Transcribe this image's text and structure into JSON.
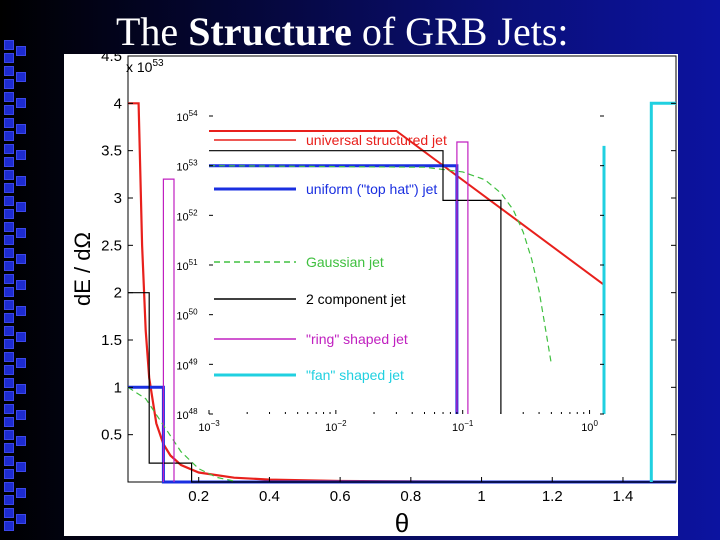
{
  "slide": {
    "title_part1": "The ",
    "title_bold": "Structure",
    "title_part2": " of GRB Jets:"
  },
  "chart_data": [
    {
      "type": "line",
      "xlabel": "θ",
      "ylabel": "dE / dΩ",
      "y_multiplier": "x 10",
      "y_multiplier_exp": "53",
      "xlim": [
        0,
        1.55
      ],
      "ylim": [
        0,
        4.5
      ],
      "x_ticks": [
        "0.2",
        "0.4",
        "0.6",
        "0.8",
        "1",
        "1.2",
        "1.4"
      ],
      "x_tick_values": [
        0.2,
        0.4,
        0.6,
        0.8,
        1,
        1.2,
        1.4
      ],
      "y_ticks": [
        "0.5",
        "1",
        "1.5",
        "2",
        "2.5",
        "3",
        "3.5",
        "4",
        "4.5"
      ],
      "y_tick_values": [
        0.5,
        1,
        1.5,
        2,
        2.5,
        3,
        3.5,
        4,
        4.5
      ],
      "series": [
        {
          "name": "universal structured jet",
          "color": "#e8201c",
          "style": "solid",
          "x": [
            0,
            0.03,
            0.04,
            0.05,
            0.06,
            0.08,
            0.1,
            0.12,
            0.15,
            0.2,
            0.3,
            0.4,
            0.6,
            0.8,
            1.0,
            1.2,
            1.4,
            1.55
          ],
          "y": [
            4,
            4,
            2.5,
            1.6,
            1.1,
            0.62,
            0.4,
            0.28,
            0.18,
            0.1,
            0.045,
            0.025,
            0.011,
            0.006,
            0.004,
            0.003,
            0.002,
            0.002
          ]
        },
        {
          "name": "uniform (\"top hat\") jet",
          "color": "#1a2fe0",
          "style": "solid",
          "x": [
            0,
            0.1,
            0.1,
            1.55
          ],
          "y": [
            1,
            1,
            0,
            0
          ]
        },
        {
          "name": "Gaussian jet",
          "color": "#40c040",
          "style": "dashed",
          "x": [
            0,
            0.05,
            0.1,
            0.15,
            0.2,
            0.25,
            0.3
          ],
          "y": [
            1,
            0.88,
            0.6,
            0.32,
            0.14,
            0.05,
            0.01
          ]
        },
        {
          "name": "2 component jet",
          "color": "#000000",
          "style": "solid",
          "x": [
            0,
            0.06,
            0.06,
            0.18,
            0.18,
            1.55
          ],
          "y": [
            2,
            2,
            0.2,
            0.2,
            0,
            0
          ]
        },
        {
          "name": "\"ring\" shaped jet",
          "color": "#c020c0",
          "style": "solid",
          "x": [
            0.1,
            0.1,
            0.13,
            0.13
          ],
          "y": [
            0,
            3.2,
            3.2,
            0
          ]
        },
        {
          "name": "\"fan\" shaped jet",
          "color": "#20d0e0",
          "style": "solid",
          "x": [
            1.48,
            1.48,
            1.55
          ],
          "y": [
            0,
            4,
            4
          ]
        }
      ]
    },
    {
      "type": "line",
      "scale": "log-log",
      "xlim": [
        0.001,
        1.3
      ],
      "ylim": [
        1e+48,
        1e+54
      ],
      "x_ticks_base": [
        "10",
        "10",
        "10",
        "10"
      ],
      "x_ticks_exp": [
        "−3",
        "−2",
        "−1",
        "0"
      ],
      "x_tick_values": [
        0.001,
        0.01,
        0.1,
        1
      ],
      "y_ticks_base": [
        "10",
        "10",
        "10",
        "10",
        "10",
        "10",
        "10"
      ],
      "y_ticks_exp": [
        "48",
        "49",
        "50",
        "51",
        "52",
        "53",
        "54"
      ],
      "y_tick_values": [
        1e+48,
        1e+49,
        1e+50,
        1e+51,
        1e+52,
        1e+53,
        1e+54
      ],
      "legend_position": "left",
      "legend": [
        {
          "label": "universal structured jet",
          "color": "#e8201c",
          "style": "solid",
          "text_color": "#e8201c"
        },
        {
          "label": "uniform (\"top hat\") jet",
          "color": "#1a2fe0",
          "style": "solid",
          "text_color": "#1a2fe0"
        },
        {
          "label": "Gaussian jet",
          "color": "#40c040",
          "style": "dashed",
          "text_color": "#40c040"
        },
        {
          "label": "2 component jet",
          "color": "#000000",
          "style": "solid",
          "text_color": "#000000"
        },
        {
          "label": "\"ring\" shaped jet",
          "color": "#c020c0",
          "style": "solid",
          "text_color": "#c020c0"
        },
        {
          "label": "\"fan\" shaped jet",
          "color": "#20d0e0",
          "style": "solid",
          "text_color": "#20d0e0"
        }
      ],
      "series": [
        {
          "name": "universal structured jet",
          "color": "#e8201c",
          "style": "solid",
          "x": [
            0.001,
            0.03,
            1.3
          ],
          "y": [
            5e+53,
            5e+53,
            4e+50
          ]
        },
        {
          "name": "uniform (\"top hat\") jet",
          "color": "#1a2fe0",
          "style": "solid",
          "x": [
            0.001,
            0.09,
            0.09
          ],
          "y": [
            1e+53,
            1e+53,
            1e+48
          ]
        },
        {
          "name": "Gaussian jet",
          "color": "#40c040",
          "style": "dashed",
          "x": [
            0.001,
            0.05,
            0.1,
            0.15,
            0.2,
            0.25,
            0.3,
            0.35,
            0.4,
            0.45,
            0.5
          ],
          "y": [
            1e+53,
            9.3e+52,
            7.5e+52,
            5.2e+52,
            2.8e+52,
            1.3e+52,
            4.6e+51,
            1.3e+51,
            3e+50,
            5e+49,
            1e+49
          ]
        },
        {
          "name": "2 component jet",
          "color": "#000000",
          "style": "solid",
          "x": [
            0.001,
            0.07,
            0.07,
            0.2,
            0.2
          ],
          "y": [
            2e+53,
            2e+53,
            2e+52,
            2e+52,
            1e+48
          ]
        },
        {
          "name": "\"ring\" shaped jet",
          "color": "#c020c0",
          "style": "solid",
          "x": [
            0.09,
            0.09,
            0.11,
            0.11
          ],
          "y": [
            1e+48,
            3e+53,
            3e+53,
            1e+48
          ]
        },
        {
          "name": "\"fan\" shaped jet",
          "color": "#20d0e0",
          "style": "solid",
          "x": [
            1.3,
            1.3
          ],
          "y": [
            1e+48,
            2.5e+53
          ]
        }
      ]
    }
  ]
}
